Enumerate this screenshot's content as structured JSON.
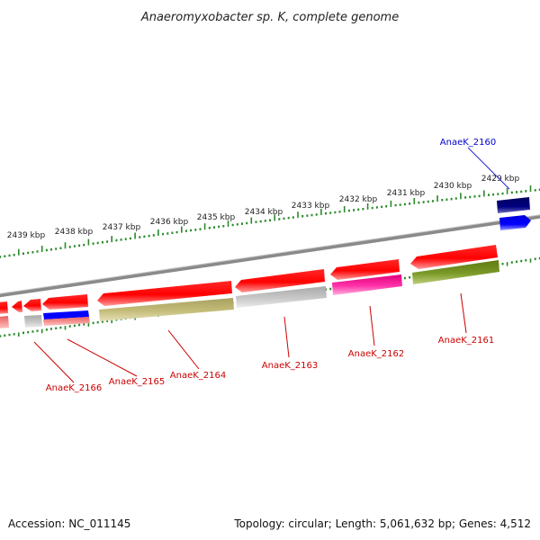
{
  "title": "Anaeromyxobacter sp. K, complete genome",
  "footer": {
    "accession": "Accession: NC_011145",
    "summary": "Topology: circular; Length: 5,061,632 bp; Genes: 4,512"
  },
  "scale": {
    "tick_labels": [
      "2429 kbp",
      "2430 kbp",
      "2431 kbp",
      "2432 kbp",
      "2433 kbp",
      "2434 kbp",
      "2435 kbp",
      "2436 kbp",
      "2437 kbp",
      "2438 kbp",
      "2439 kbp"
    ]
  },
  "genes": [
    {
      "label": "AnaeK_2160",
      "color": "#0000cc"
    },
    {
      "label": "AnaeK_2161",
      "color": "#cc0000"
    },
    {
      "label": "AnaeK_2162",
      "color": "#cc0000"
    },
    {
      "label": "AnaeK_2163",
      "color": "#cc0000"
    },
    {
      "label": "AnaeK_2164",
      "color": "#cc0000"
    },
    {
      "label": "AnaeK_2165",
      "color": "#cc0000"
    },
    {
      "label": "AnaeK_2166",
      "color": "#cc0000"
    }
  ],
  "colors": {
    "backbone": "#808080",
    "tick": "#2a8a2a",
    "gene_red": "#ff0000",
    "gene_blue": "#0000ff",
    "gene_navy": "#000080"
  }
}
